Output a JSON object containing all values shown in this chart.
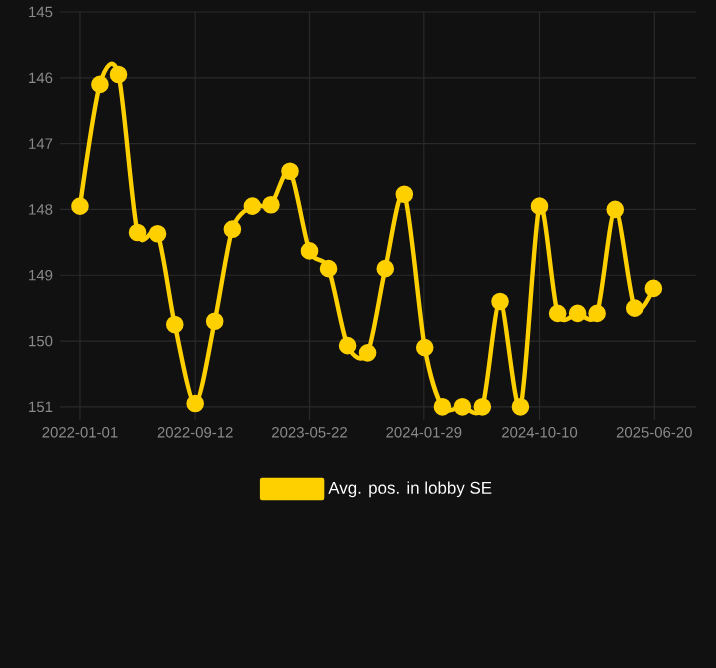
{
  "chart_data": {
    "type": "line",
    "x": [
      "2022-01-01",
      "2022-02-14",
      "2022-03-27",
      "2022-05-08",
      "2022-06-21",
      "2022-07-29",
      "2022-09-12",
      "2022-10-25",
      "2022-12-03",
      "2023-01-16",
      "2023-02-26",
      "2023-04-09",
      "2023-05-22",
      "2023-07-03",
      "2023-08-14",
      "2023-09-27",
      "2023-11-05",
      "2023-12-17",
      "2024-01-31",
      "2024-03-10",
      "2024-04-23",
      "2024-06-06",
      "2024-07-15",
      "2024-08-29",
      "2024-10-10",
      "2024-11-19",
      "2025-01-02",
      "2025-02-14",
      "2025-03-26",
      "2025-05-08",
      "2025-06-18"
    ],
    "series": [
      {
        "name": "Avg. pos. in lobby SE",
        "color": "#ffd000",
        "values": [
          147.95,
          146.1,
          145.95,
          148.35,
          148.37,
          149.75,
          150.95,
          149.7,
          148.3,
          147.95,
          147.93,
          147.42,
          148.63,
          148.9,
          150.07,
          150.18,
          148.9,
          147.77,
          150.1,
          151,
          151,
          151,
          149.4,
          151,
          147.95,
          149.58,
          149.58,
          149.58,
          148.0,
          149.5,
          149.2
        ]
      }
    ],
    "xlim": [
      "2021-11-18",
      "2025-09-20"
    ],
    "ylim": [
      151.2,
      145
    ],
    "xticks": [
      "2022-01-01",
      "2022-09-12",
      "2023-05-22",
      "2024-01-29",
      "2024-10-10",
      "2025-06-20"
    ],
    "yticks": [
      145,
      146,
      147,
      148,
      149,
      150,
      151
    ],
    "grid": true,
    "legend": "bottom",
    "marker": "circle",
    "line_style": "solid"
  }
}
